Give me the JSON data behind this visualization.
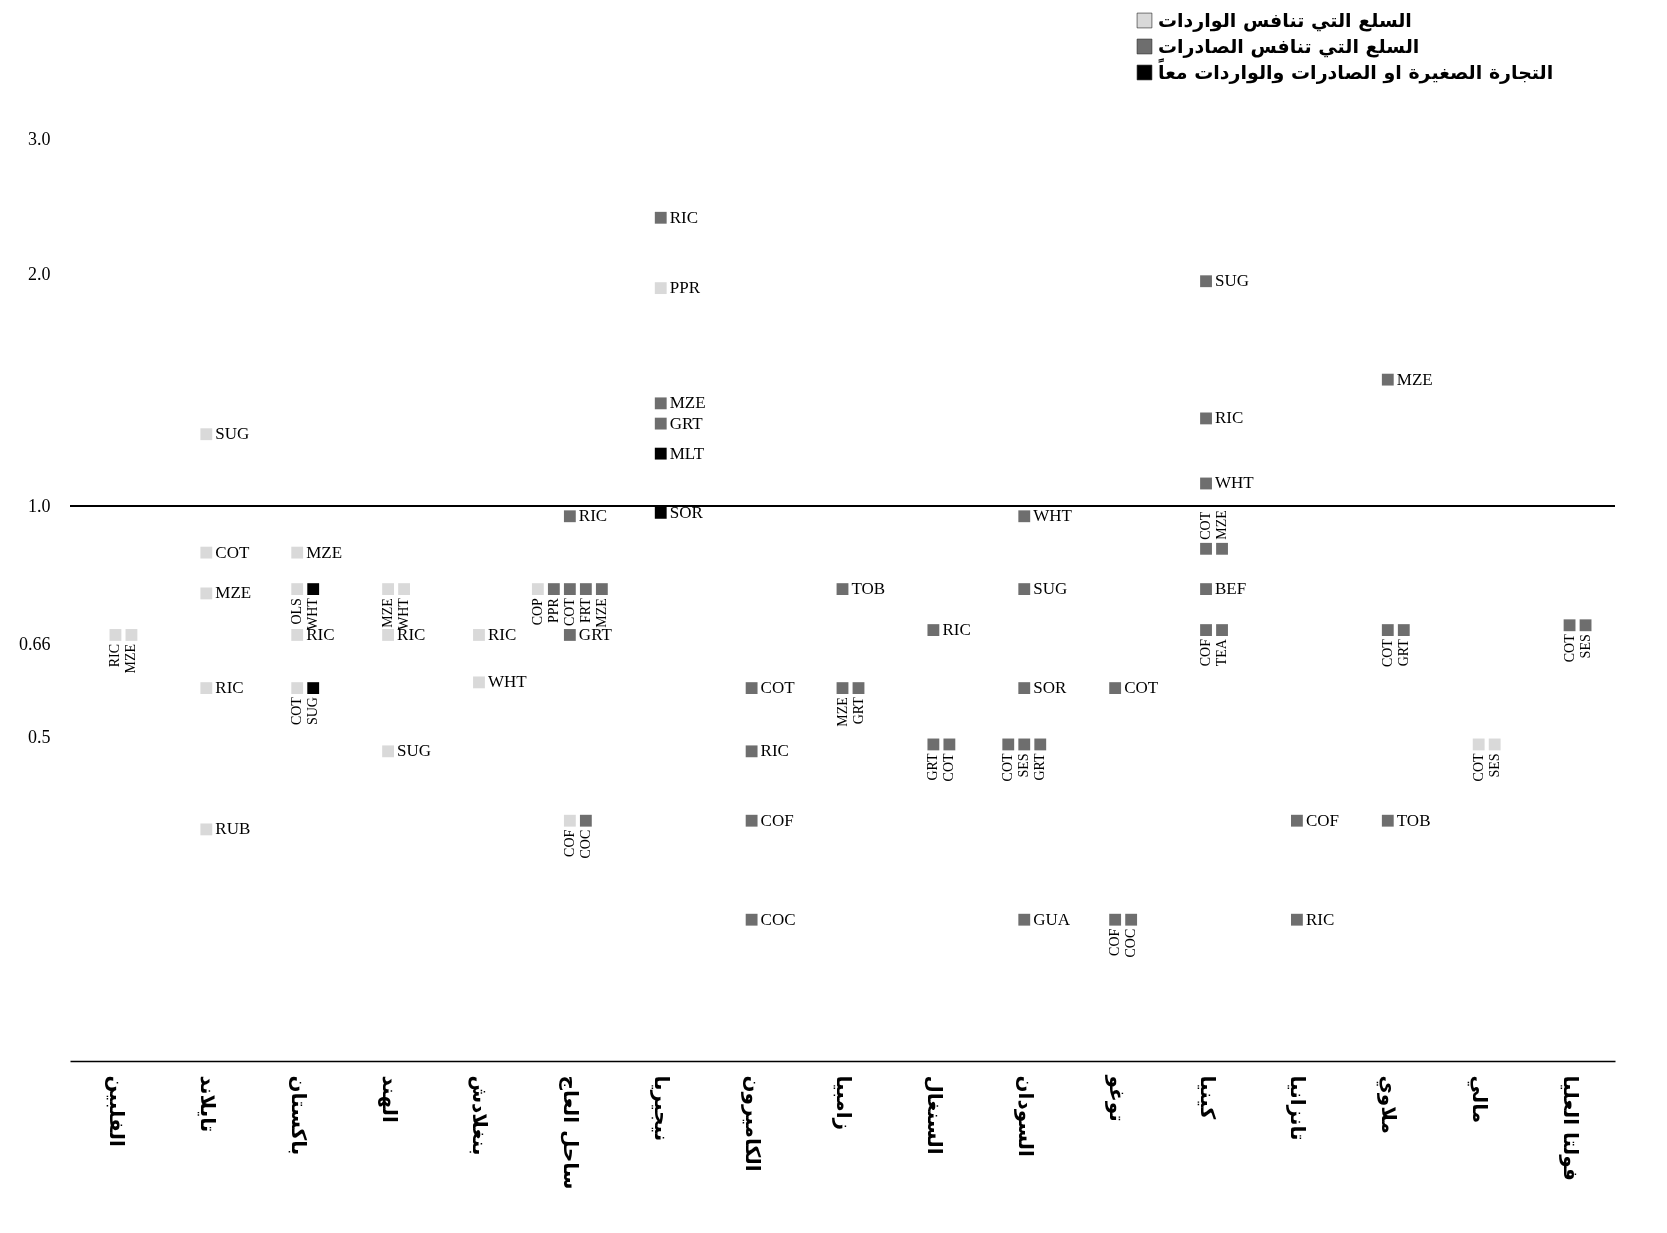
{
  "chart_data": {
    "type": "scatter",
    "marker": "square",
    "legend": "top right",
    "categories": [
      "الفلبين",
      "تايلاند",
      "باكستان",
      "الهند",
      "بنغلادش",
      "ساحل العاج",
      "نيجيريا",
      "الكاميرون",
      "زامبيا",
      "السنغال",
      "السودان",
      "توغو",
      "كينيا",
      "تانزانيا",
      "ملاوي",
      "مالي",
      "فولتا العليا"
    ],
    "ylim": [
      0.19,
      3
    ],
    "log": true,
    "yticks": [
      0.5,
      0.66,
      {
        "value": 1,
        "label": "1.0"
      },
      {
        "value": 2,
        "label": "2.0"
      },
      {
        "value": 3,
        "label": "3.0"
      }
    ],
    "series": [
      {
        "name": "السلع التي تنافس الواردات",
        "color": "#d9d9d9",
        "x": [
          "الفلبين",
          "الفلبين",
          "تايلاند",
          "تايلاند",
          "تايلاند",
          "تايلاند",
          "تايلاند",
          "باكستان",
          "باكستان",
          "باكستان",
          "باكستان",
          "الهند",
          "الهند",
          "الهند",
          "الهند",
          "بنغلادش",
          "بنغلادش",
          "ساحل العاج",
          "ساحل العاج",
          "نيجيريا",
          "مالي",
          "مالي"
        ],
        "values": [
          0.68,
          0.68,
          1.24,
          0.87,
          0.77,
          0.58,
          0.38,
          0.87,
          0.78,
          0.68,
          0.58,
          0.78,
          0.78,
          0.68,
          0.48,
          0.68,
          0.59,
          0.78,
          0.39,
          1.92,
          0.49,
          0.49
        ]
      },
      {
        "name": "السلع التي تنافس الصادرات",
        "color": "#6e6e6e",
        "x": [
          "ساحل العاج",
          "ساحل العاج",
          "ساحل العاج",
          "ساحل العاج",
          "ساحل العاج",
          "ساحل العاج",
          "ساحل العاج",
          "نيجيريا",
          "نيجيريا",
          "نيجيريا",
          "الكاميرون",
          "الكاميرون",
          "الكاميرون",
          "الكاميرون",
          "زامبيا",
          "زامبيا",
          "زامبيا",
          "السنغال",
          "السنغال",
          "السنغال",
          "السودان",
          "السودان",
          "السودان",
          "السودان",
          "السودان",
          "السودان",
          "السودان",
          "توغو",
          "توغو",
          "توغو",
          "كينيا",
          "كينيا",
          "كينيا",
          "كينيا",
          "كينيا",
          "كينيا",
          "كينيا",
          "كينيا",
          "تانزانيا",
          "تانزانيا",
          "ملاوي",
          "ملاوي",
          "ملاوي",
          "ملاوي",
          "فولتا العليا",
          "فولتا العليا"
        ],
        "values": [
          0.97,
          0.78,
          0.78,
          0.78,
          0.78,
          0.68,
          0.39,
          2.37,
          1.36,
          1.28,
          0.58,
          0.48,
          0.39,
          0.29,
          0.78,
          0.58,
          0.58,
          0.69,
          0.49,
          0.49,
          0.97,
          0.78,
          0.58,
          0.49,
          0.49,
          0.49,
          0.29,
          0.58,
          0.29,
          0.29,
          1.96,
          1.3,
          1.07,
          0.88,
          0.88,
          0.78,
          0.69,
          0.69,
          0.39,
          0.29,
          1.46,
          0.69,
          0.69,
          0.39,
          0.7,
          0.7
        ]
      },
      {
        "name": "التجارة الصغيرة او الصادرات والواردات معاً",
        "color": "#000000",
        "x": [
          "باكستان",
          "باكستان",
          "نيجيريا",
          "نيجيريا"
        ],
        "values": [
          0.78,
          0.58,
          1.17,
          0.98
        ]
      }
    ],
    "ref_lines": [
      {
        "axis": "y",
        "value": 1
      }
    ],
    "annotations": [
      {
        "text": "RIC",
        "x": "الفلبين",
        "y": 0.68
      },
      {
        "text": "MZE",
        "x": "الفلبين",
        "y": 0.68
      },
      {
        "text": "SUG",
        "x": "تايلاند",
        "y": 1.24
      },
      {
        "text": "COT",
        "x": "تايلاند",
        "y": 0.87
      },
      {
        "text": "MZE",
        "x": "تايلاند",
        "y": 0.77
      },
      {
        "text": "RIC",
        "x": "تايلاند",
        "y": 0.58
      },
      {
        "text": "RUB",
        "x": "تايلاند",
        "y": 0.38
      },
      {
        "text": "MZE",
        "x": "باكستان",
        "y": 0.87
      },
      {
        "text": "OLS",
        "x": "باكستان",
        "y": 0.78
      },
      {
        "text": "RIC",
        "x": "باكستان",
        "y": 0.68
      },
      {
        "text": "COT",
        "x": "باكستان",
        "y": 0.58
      },
      {
        "text": "MZE",
        "x": "الهند",
        "y": 0.78
      },
      {
        "text": "WHT",
        "x": "الهند",
        "y": 0.78
      },
      {
        "text": "RIC",
        "x": "الهند",
        "y": 0.68
      },
      {
        "text": "SUG",
        "x": "الهند",
        "y": 0.48
      },
      {
        "text": "RIC",
        "x": "بنغلادش",
        "y": 0.68
      },
      {
        "text": "WHT",
        "x": "بنغلادش",
        "y": 0.59
      },
      {
        "text": "COP",
        "x": "ساحل العاج",
        "y": 0.78
      },
      {
        "text": "COF",
        "x": "ساحل العاج",
        "y": 0.39
      },
      {
        "text": "PPR",
        "x": "نيجيريا",
        "y": 1.92
      },
      {
        "text": "COT",
        "x": "مالي",
        "y": 0.49
      },
      {
        "text": "SES",
        "x": "مالي",
        "y": 0.49
      },
      {
        "text": "RIC",
        "x": "ساحل العاج",
        "y": 0.97
      },
      {
        "text": "PPR",
        "x": "ساحل العاج",
        "y": 0.78
      },
      {
        "text": "COT",
        "x": "ساحل العاج",
        "y": 0.78
      },
      {
        "text": "FRT",
        "x": "ساحل العاج",
        "y": 0.78
      },
      {
        "text": "MZE",
        "x": "ساحل العاج",
        "y": 0.78
      },
      {
        "text": "GRT",
        "x": "ساحل العاج",
        "y": 0.68
      },
      {
        "text": "COC",
        "x": "ساحل العاج",
        "y": 0.39
      },
      {
        "text": "RIC",
        "x": "نيجيريا",
        "y": 2.37
      },
      {
        "text": "MZE",
        "x": "نيجيريا",
        "y": 1.36
      },
      {
        "text": "GRT",
        "x": "نيجيريا",
        "y": 1.28
      },
      {
        "text": "COT",
        "x": "الكاميرون",
        "y": 0.58
      },
      {
        "text": "RIC",
        "x": "الكاميرون",
        "y": 0.48
      },
      {
        "text": "COF",
        "x": "الكاميرون",
        "y": 0.39
      },
      {
        "text": "COC",
        "x": "الكاميرون",
        "y": 0.29
      },
      {
        "text": "TOB",
        "x": "زامبيا",
        "y": 0.78
      },
      {
        "text": "MZE",
        "x": "زامبيا",
        "y": 0.58
      },
      {
        "text": "GRT",
        "x": "زامبيا",
        "y": 0.58
      },
      {
        "text": "RIC",
        "x": "السنغال",
        "y": 0.69
      },
      {
        "text": "GRT",
        "x": "السنغال",
        "y": 0.49
      },
      {
        "text": "COT",
        "x": "السنغال",
        "y": 0.49
      },
      {
        "text": "WHT",
        "x": "السودان",
        "y": 0.97
      },
      {
        "text": "SUG",
        "x": "السودان",
        "y": 0.78
      },
      {
        "text": "SOR",
        "x": "السودان",
        "y": 0.58
      },
      {
        "text": "COT",
        "x": "السودان",
        "y": 0.49
      },
      {
        "text": "SES",
        "x": "السودان",
        "y": 0.49
      },
      {
        "text": "GRT",
        "x": "السودان",
        "y": 0.49
      },
      {
        "text": "GUA",
        "x": "السودان",
        "y": 0.29
      },
      {
        "text": "COT",
        "x": "توغو",
        "y": 0.58
      },
      {
        "text": "COF",
        "x": "توغو",
        "y": 0.29
      },
      {
        "text": "COC",
        "x": "توغو",
        "y": 0.29
      },
      {
        "text": "SUG",
        "x": "كينيا",
        "y": 1.96
      },
      {
        "text": "RIC",
        "x": "كينيا",
        "y": 1.3
      },
      {
        "text": "WHT",
        "x": "كينيا",
        "y": 1.07
      },
      {
        "text": "COT",
        "x": "كينيا",
        "y": 0.88
      },
      {
        "text": "MZE",
        "x": "كينيا",
        "y": 0.88
      },
      {
        "text": "BEF",
        "x": "كينيا",
        "y": 0.78
      },
      {
        "text": "COF",
        "x": "كينيا",
        "y": 0.69
      },
      {
        "text": "TEA",
        "x": "كينيا",
        "y": 0.69
      },
      {
        "text": "COF",
        "x": "تانزانيا",
        "y": 0.39
      },
      {
        "text": "RIC",
        "x": "تانزانيا",
        "y": 0.29
      },
      {
        "text": "MZE",
        "x": "ملاوي",
        "y": 1.46
      },
      {
        "text": "COT",
        "x": "ملاوي",
        "y": 0.69
      },
      {
        "text": "GRT",
        "x": "ملاوي",
        "y": 0.69
      },
      {
        "text": "TOB",
        "x": "ملاوي",
        "y": 0.39
      },
      {
        "text": "COT",
        "x": "فولتا العليا",
        "y": 0.7
      },
      {
        "text": "SES",
        "x": "فولتا العليا",
        "y": 0.7
      },
      {
        "text": "MLT",
        "x": "نيجيريا",
        "y": 1.17
      },
      {
        "text": "SOR",
        "x": "نيجيريا",
        "y": 0.98
      },
      {
        "text": "WHT",
        "x": "باكستان",
        "y": 0.78
      },
      {
        "text": "SUG",
        "x": "باكستان",
        "y": 0.58
      }
    ]
  }
}
